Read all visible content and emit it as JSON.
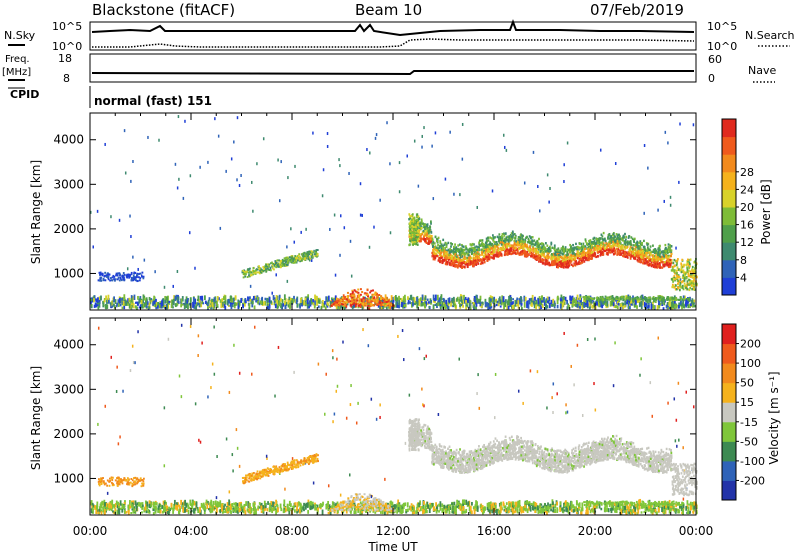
{
  "header": {
    "station": "Blackstone (fitACF)",
    "beam": "Beam 10",
    "date": "07/Feb/2019"
  },
  "top_panels": {
    "nsky_label": "N.Sky",
    "nsearch_label": "N.Search",
    "noise_ticks": [
      "10^5",
      "10^0"
    ],
    "freq_label": "Freq.",
    "freq_unit": "[MHz]",
    "freq_ticks": [
      "18",
      "8"
    ],
    "nave_label": "Nave",
    "nave_ticks": [
      "60",
      "0"
    ],
    "cpid_label": "CPID",
    "cpid_text": "normal (fast) 151"
  },
  "chart_data": [
    {
      "type": "heatmap",
      "title": "",
      "xlabel": "Time UT",
      "ylabel": "Slant Range [km]",
      "x_ticks": [
        "00:00",
        "04:00",
        "08:00",
        "12:00",
        "16:00",
        "20:00",
        "00:00"
      ],
      "y_ticks": [
        1000,
        2000,
        3000,
        4000
      ],
      "xlim_hours": [
        0,
        24
      ],
      "ylim_km": [
        180,
        4600
      ],
      "colorbar": {
        "label": "Power [dB]",
        "ticks": [
          4,
          8,
          12,
          16,
          20,
          24,
          28
        ],
        "colors": [
          "#1f3fd6",
          "#2f63b8",
          "#3e8a6f",
          "#4f9f4a",
          "#7ebc37",
          "#d8d22a",
          "#f5b21c",
          "#f28a1c",
          "#ef5a1c",
          "#e02a1e"
        ]
      }
    },
    {
      "type": "heatmap",
      "title": "",
      "xlabel": "Time UT",
      "ylabel": "Slant Range [km]",
      "x_ticks": [
        "00:00",
        "04:00",
        "08:00",
        "12:00",
        "16:00",
        "20:00",
        "00:00"
      ],
      "y_ticks": [
        1000,
        2000,
        3000,
        4000
      ],
      "xlim_hours": [
        0,
        24
      ],
      "ylim_km": [
        180,
        4600
      ],
      "colorbar": {
        "label": "Velocity [m s⁻¹]",
        "ticks": [
          "200",
          "100",
          "50",
          "15",
          "-15",
          "-50",
          "-100",
          "-200"
        ],
        "colors": [
          "#2233a8",
          "#2f63b8",
          "#3d8a52",
          "#7fc63a",
          "#c8c8c0",
          "#f5b21c",
          "#f28a1c",
          "#ef5a1c",
          "#e0201e"
        ]
      }
    }
  ],
  "x_axis_title": "Time UT"
}
